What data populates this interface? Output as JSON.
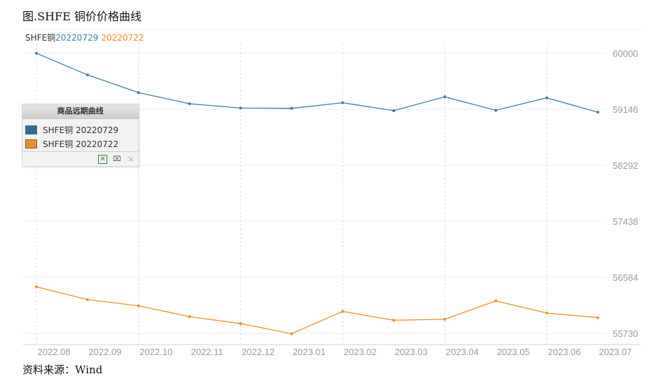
{
  "header": {
    "title": "图.SHFE 铜价价格曲线"
  },
  "top_legend": {
    "prefix": "SHFE铜",
    "series1": "20220729",
    "series2": "20220722"
  },
  "legend_box": {
    "title": "商品远期曲线",
    "items": [
      "SHFE铜 20220729",
      "SHFE铜 20220722"
    ]
  },
  "footer": {
    "source": "资料来源：Wind"
  },
  "colors": {
    "series1": "#3a7fa8",
    "series2": "#ef8e25",
    "axis_text": "#9a9a9a",
    "grid": "#d9d9d9"
  },
  "icons": [
    "excel-icon",
    "crop-icon",
    "export-icon"
  ],
  "chart_data": {
    "type": "line",
    "categories": [
      "2022.08",
      "2022.09",
      "2022.10",
      "2022.11",
      "2022.12",
      "2023.01",
      "2023.02",
      "2023.03",
      "2023.04",
      "2023.05",
      "2023.06",
      "2023.07"
    ],
    "series": [
      {
        "name": "SHFE铜 20220729",
        "values": [
          60000,
          59670,
          59400,
          59230,
          59165,
          59160,
          59245,
          59125,
          59335,
          59130,
          59320,
          59100
        ]
      },
      {
        "name": "SHFE铜 20220722",
        "values": [
          56440,
          56245,
          56150,
          55985,
          55880,
          55725,
          56065,
          55930,
          55945,
          56225,
          56040,
          55970
        ]
      }
    ],
    "y_ticks": [
      "60000",
      "59146",
      "58292",
      "57438",
      "56584",
      "55730"
    ],
    "ylim": [
      55730,
      60000
    ],
    "grid": true,
    "legend_position": "left"
  }
}
